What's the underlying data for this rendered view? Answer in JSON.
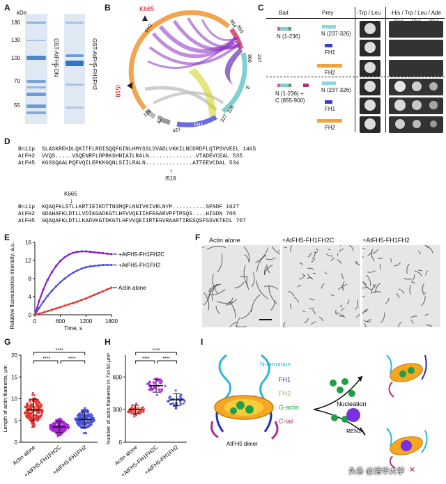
{
  "panels": {
    "a": "A",
    "b": "B",
    "c": "C",
    "d": "D",
    "e": "E",
    "f": "F",
    "g": "G",
    "h": "H",
    "i": "I"
  },
  "panel_a": {
    "unit": "kDa",
    "markers": [
      "180",
      "130",
      "100",
      "70",
      "55"
    ],
    "lane1_label": "GST-AtFH5-DN",
    "lane2_label": "GST-AtFH5-FH1FH2"
  },
  "panel_b": {
    "labels": {
      "fh2": "FH2",
      "fh1": "FH1",
      "c": "C",
      "n": "N",
      "k665": "K665",
      "i518": "I518",
      "n854": "854",
      "n855": "855",
      "n900": "900",
      "n237": "237",
      "n326": "326",
      "n327": "327",
      "n427": "427",
      "n428": "428",
      "n139": "139"
    }
  },
  "panel_c": {
    "headers": {
      "bait": "Bait",
      "prey": "Prey",
      "trp_leu": "-Trp / Leu",
      "his": "-His / Trp / Leu / Ade"
    },
    "dilutions": [
      "10⁻¹",
      "10⁻²",
      "10⁻³"
    ],
    "bait1": "N (1-236)",
    "bait2_line1": "N (1-236) +",
    "bait2_line2": "C (855-900)",
    "preys": [
      "N (237-326)",
      "FH1",
      "FH2"
    ]
  },
  "panel_d": {
    "block1": [
      {
        "name": "Bni1p",
        "seq": "SLASKREKDLQKITFLRDISQQFGINLHMYSSLSVADLVKKILNCDRDFLQTPSVVEEL",
        "num": "1465"
      },
      {
        "name": "AtFH2",
        "seq": "VVQS.....VSQENRFLDPRKSHNIAILRALN..............VTADEVCEAL",
        "num": "535"
      },
      {
        "name": "AtFH5",
        "seq": "KGSSQAALPQFVQILEPKKGQNLSIILRALN..............ATTEEVCDAL",
        "num": "534"
      }
    ],
    "block2": [
      {
        "name": "Bni1p",
        "seq": "KQAQFKLSTLLKRTIEIKDTTNSMQFLNNIVKIVRLNYP..........SFNDF",
        "num": "1627"
      },
      {
        "name": "AtFH2",
        "seq": "GDAHAFKLDTLLVDIKGADKGTLHFVVQEIIKFEGARVPFTPSQS....HIGDN",
        "num": "708"
      },
      {
        "name": "AtFH5",
        "seq": "GQAQAFKLDTLLKADVKGTDKGTLHFVVQEIIRTEGVRAARTIRESQSFSSVKTEDL",
        "num": "707"
      }
    ],
    "k665": "K665",
    "i518": "I518"
  },
  "chart_data": [
    {
      "type": "line",
      "xlabel": "Time, s",
      "ylabel": "Relative fluorescence intensity, a.u.",
      "xlim": [
        0,
        1800
      ],
      "ylim": [
        0,
        16
      ],
      "xticks": [
        0,
        600,
        1200,
        1800
      ],
      "yticks": [
        0,
        4,
        8,
        12,
        16
      ],
      "series": [
        {
          "name": "+AtFH5-FH1FH2C",
          "color": "#8a1fc4",
          "x": [
            0,
            100,
            200,
            300,
            400,
            500,
            600,
            700,
            800,
            900,
            1000,
            1100,
            1200,
            1300,
            1400,
            1500,
            1600,
            1700,
            1800
          ],
          "y": [
            0,
            3.0,
            5.6,
            7.7,
            9.4,
            10.8,
            11.9,
            12.7,
            13.3,
            13.7,
            13.9,
            14.0,
            14.0,
            13.9,
            13.8,
            13.7,
            13.6,
            13.5,
            13.4
          ]
        },
        {
          "name": "+AtFH5-FH1FH2",
          "color": "#4f55d8",
          "x": [
            0,
            100,
            200,
            300,
            400,
            500,
            600,
            700,
            800,
            900,
            1000,
            1100,
            1200,
            1300,
            1400,
            1500,
            1600,
            1700,
            1800
          ],
          "y": [
            0,
            1.5,
            2.9,
            4.2,
            5.3,
            6.3,
            7.2,
            8.0,
            8.7,
            9.3,
            9.8,
            10.2,
            10.5,
            10.7,
            10.8,
            10.9,
            11.0,
            11.0,
            11.0
          ]
        },
        {
          "name": "Actin alone",
          "color": "#e03a30",
          "x": [
            0,
            100,
            200,
            300,
            400,
            500,
            600,
            700,
            800,
            900,
            1000,
            1100,
            1200,
            1300,
            1400,
            1500,
            1600,
            1700,
            1800
          ],
          "y": [
            0,
            0.25,
            0.5,
            0.8,
            1.1,
            1.4,
            1.7,
            2.0,
            2.3,
            2.6,
            2.9,
            3.3,
            3.6,
            4.0,
            4.4,
            4.8,
            5.2,
            5.6,
            6.0
          ]
        }
      ]
    },
    {
      "type": "scatter",
      "ylabel": "Length of actin filaments, μm",
      "ylim": [
        0,
        20
      ],
      "yticks": [
        0,
        5,
        10,
        15,
        20
      ],
      "categories": [
        "Actin alone",
        "+AtFH5-FH1FH2C",
        "+AtFH5-FH1FH2"
      ],
      "means": [
        7.4,
        3.5,
        5.2
      ],
      "sd": [
        2.5,
        1.3,
        1.8
      ],
      "colors": [
        "#e0312e",
        "#a521d4",
        "#4a4fd6"
      ],
      "significance": [
        "****",
        "****",
        "****"
      ]
    },
    {
      "type": "scatter",
      "ylabel": "Number of actin filaments in 73×50 μm²",
      "ylim": [
        0,
        800
      ],
      "yticks": [
        0,
        300,
        600
      ],
      "categories": [
        "Actin alone",
        "+AtFH5-FH1FH2C",
        "+AtFH5-FH1FH2"
      ],
      "means": [
        300,
        520,
        390
      ],
      "sd": [
        40,
        60,
        55
      ],
      "colors": [
        "#e0312e",
        "#a521d4",
        "#4a4fd6"
      ],
      "significance": [
        "****",
        "****",
        "****"
      ]
    }
  ],
  "panel_f": {
    "labels": [
      "Actin alone",
      "+AtFH5-FH1FH2C",
      "+AtFH5-FH1FH2"
    ]
  },
  "panel_i": {
    "legend": {
      "n": "N-terminus",
      "fh1": "FH1",
      "fh2": "FH2",
      "gactin": "G-actin",
      "ctail": "C-tail"
    },
    "dimer": "AtFH5 dimer",
    "nucleation": "Nucleation",
    "ren1": "REN1"
  },
  "watermark": "头条 @清华大学"
}
